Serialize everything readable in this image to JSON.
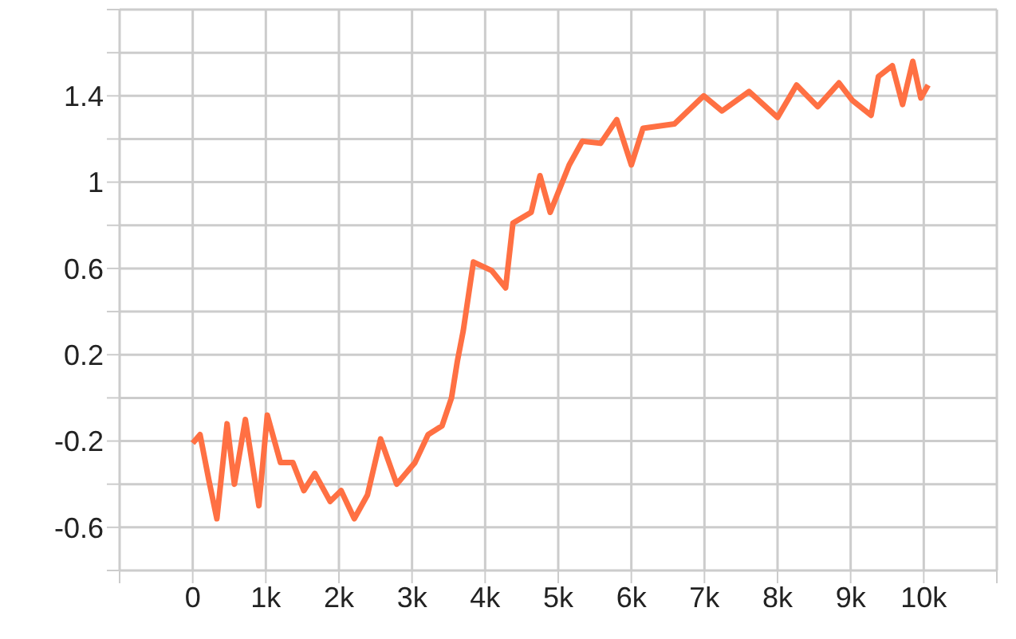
{
  "chart_data": {
    "type": "line",
    "x": [
      0,
      100,
      220,
      330,
      470,
      570,
      720,
      905,
      1020,
      1200,
      1370,
      1520,
      1670,
      1880,
      2030,
      2210,
      2390,
      2570,
      2790,
      3040,
      3220,
      3410,
      3540,
      3620,
      3700,
      3840,
      4090,
      4280,
      4380,
      4630,
      4750,
      4890,
      5150,
      5330,
      5580,
      5800,
      6000,
      6160,
      6590,
      6990,
      7240,
      7610,
      8000,
      8260,
      8550,
      8840,
      9020,
      9280,
      9380,
      9570,
      9710,
      9850,
      9960,
      10060
    ],
    "series": [
      {
        "color": "#ff7043",
        "values": [
          -0.21,
          -0.17,
          -0.38,
          -0.56,
          -0.12,
          -0.4,
          -0.1,
          -0.5,
          -0.08,
          -0.3,
          -0.3,
          -0.43,
          -0.35,
          -0.48,
          -0.43,
          -0.56,
          -0.45,
          -0.19,
          -0.4,
          -0.3,
          -0.17,
          -0.13,
          0,
          0.17,
          0.31,
          0.63,
          0.59,
          0.51,
          0.81,
          0.86,
          1.03,
          0.86,
          1.08,
          1.19,
          1.18,
          1.29,
          1.08,
          1.25,
          1.27,
          1.4,
          1.33,
          1.42,
          1.3,
          1.45,
          1.35,
          1.46,
          1.38,
          1.31,
          1.49,
          1.54,
          1.36,
          1.56,
          1.39,
          1.45
        ]
      }
    ],
    "xlim": [
      -1000,
      11000
    ],
    "xticks": [
      {
        "value": -1000,
        "label": null
      },
      {
        "value": 0,
        "label": "0"
      },
      {
        "value": 1000,
        "label": "1k"
      },
      {
        "value": 2000,
        "label": "2k"
      },
      {
        "value": 3000,
        "label": "3k"
      },
      {
        "value": 4000,
        "label": "4k"
      },
      {
        "value": 5000,
        "label": "5k"
      },
      {
        "value": 6000,
        "label": "6k"
      },
      {
        "value": 7000,
        "label": "7k"
      },
      {
        "value": 8000,
        "label": "8k"
      },
      {
        "value": 9000,
        "label": "9k"
      },
      {
        "value": 10000,
        "label": "10k"
      },
      {
        "value": 11000,
        "label": null
      }
    ],
    "ylim": [
      -0.8,
      1.8
    ],
    "yticks": [
      {
        "value": -0.8,
        "label": null
      },
      -0.6,
      {
        "value": -0.4,
        "label": null
      },
      -0.2,
      {
        "value": 0,
        "label": null
      },
      0.2,
      {
        "value": 0.4,
        "label": null
      },
      0.6,
      {
        "value": 0.8,
        "label": null
      },
      1,
      {
        "value": 1.2,
        "label": null
      },
      1.4,
      {
        "value": 1.6,
        "label": null
      },
      {
        "value": 1.8,
        "label": null
      }
    ],
    "grid": true,
    "marker": "none",
    "line_style": "solid",
    "legend": false
  }
}
